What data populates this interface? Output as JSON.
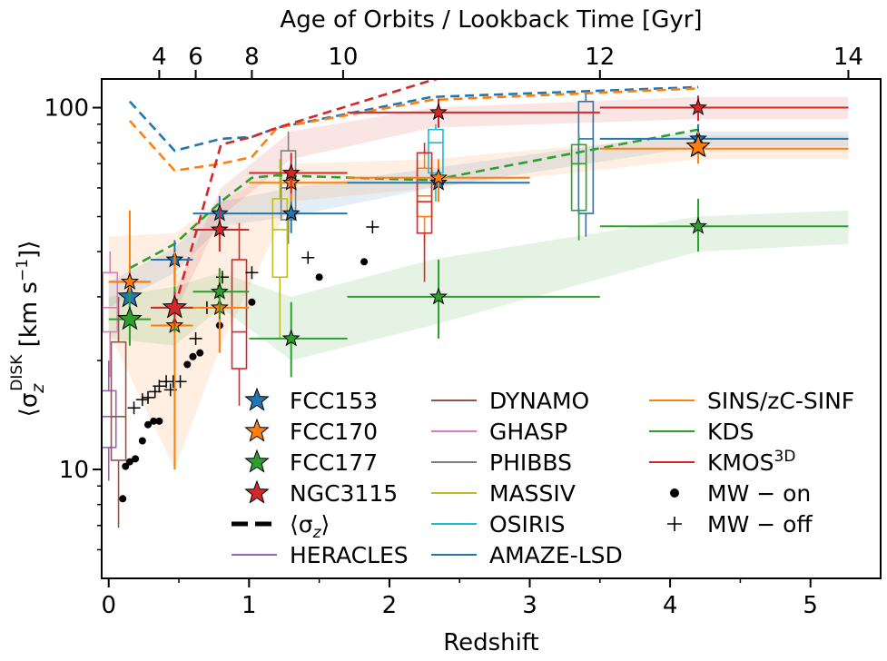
{
  "chart_data": {
    "type": "scatter",
    "xlabel": "Redshift",
    "ylabel": "⟨σ",
    "ylabel_sub": "z",
    "ylabel_sup": "DISK",
    "ylabel_units": " [km s",
    "ylabel_units_sup": "−1",
    "ylabel_close": "]⟩",
    "top_xlabel": "Age of Orbits / Lookback Time [Gyr]",
    "xlim": [
      -0.05,
      5.5
    ],
    "ylim": [
      5,
      120
    ],
    "y_scale": "log",
    "x_ticks": [
      0,
      1,
      2,
      3,
      4,
      5
    ],
    "x_tick_labels": [
      "0",
      "1",
      "2",
      "3",
      "4",
      "5"
    ],
    "y_ticks": [
      10,
      100
    ],
    "y_tick_labels": [
      "10",
      "100"
    ],
    "top_ticks": [
      {
        "label": "4",
        "z": 0.36
      },
      {
        "label": "6",
        "z": 0.62
      },
      {
        "label": "8",
        "z": 1.02
      },
      {
        "label": "10",
        "z": 1.67
      },
      {
        "label": "12",
        "z": 3.5
      },
      {
        "label": "14",
        "z": 5.27
      }
    ],
    "colors": {
      "FCC153": "#1f77b4",
      "FCC170": "#ff7f0e",
      "FCC177": "#2ca02c",
      "NGC3115": "#d62728",
      "HERACLES": "#9467bd",
      "DYNAMO": "#8c564b",
      "GHASP": "#e377c2",
      "PHIBBS": "#7f7f7f",
      "MASSIV": "#bcbd22",
      "OSIRIS": "#17becf",
      "AMAZE-LSD": "#1f77b4",
      "SINS/zC-SINF": "#ff7f0e",
      "KDS": "#2ca02c",
      "KMOS3D": "#d62728"
    },
    "galaxies": [
      {
        "name": "FCC153",
        "color": "#1f77b4",
        "sigma_z_mean": [
          [
            0.15,
            104
          ],
          [
            0.47,
            76
          ],
          [
            0.8,
            82
          ],
          [
            1.02,
            83
          ],
          [
            1.2,
            88
          ],
          [
            2.3,
            107
          ],
          [
            4.2,
            114
          ]
        ],
        "band": [
          [
            0.0,
            28,
            33
          ],
          [
            0.47,
            35,
            41
          ],
          [
            0.8,
            47,
            55
          ],
          [
            1.3,
            50,
            60
          ],
          [
            2.3,
            60,
            68
          ],
          [
            4.2,
            78,
            86
          ],
          [
            5.27,
            78,
            86
          ]
        ],
        "big_star": [
          0.15,
          30
        ],
        "points": [
          {
            "x": 0.15,
            "y": 33,
            "xerr": [
              0.0,
              0.3
            ],
            "yerr": [
              28,
              37
            ]
          },
          {
            "x": 0.47,
            "y": 38,
            "xerr": [
              0.3,
              0.6
            ],
            "yerr": [
              33,
              43
            ]
          },
          {
            "x": 0.79,
            "y": 51,
            "xerr": [
              0.6,
              1.0
            ],
            "yerr": [
              45,
              57
            ]
          },
          {
            "x": 1.3,
            "y": 51,
            "xerr": [
              1.0,
              1.7
            ],
            "yerr": [
              45,
              58
            ]
          },
          {
            "x": 2.35,
            "y": 62,
            "xerr": [
              1.7,
              3.0
            ],
            "yerr": [
              55,
              70
            ]
          },
          {
            "x": 4.2,
            "y": 82,
            "xerr": [
              3.5,
              5.27
            ],
            "yerr": [
              74,
              90
            ]
          }
        ]
      },
      {
        "name": "FCC170",
        "color": "#ff7f0e",
        "sigma_z_mean": [
          [
            0.15,
            92
          ],
          [
            0.47,
            67
          ],
          [
            0.8,
            70
          ],
          [
            1.02,
            73
          ],
          [
            1.2,
            88
          ],
          [
            2.3,
            105
          ],
          [
            4.2,
            113
          ]
        ],
        "band": [
          [
            0.0,
            24,
            44
          ],
          [
            0.47,
            10,
            45
          ],
          [
            0.8,
            22,
            55
          ],
          [
            1.3,
            55,
            70
          ],
          [
            2.3,
            60,
            72
          ],
          [
            4.2,
            72,
            84
          ],
          [
            5.27,
            72,
            84
          ]
        ],
        "big_star": [
          4.2,
          78
        ],
        "points": [
          {
            "x": 0.15,
            "y": 33,
            "xerr": [
              0.0,
              0.3
            ],
            "yerr": [
              22,
              52
            ]
          },
          {
            "x": 0.47,
            "y": 25,
            "xerr": [
              0.3,
              0.6
            ],
            "yerr": [
              10,
              40
            ]
          },
          {
            "x": 0.79,
            "y": 28,
            "xerr": [
              0.6,
              1.0
            ],
            "yerr": [
              21,
              36
            ]
          },
          {
            "x": 1.3,
            "y": 62,
            "xerr": [
              1.0,
              1.7
            ],
            "yerr": [
              55,
              70
            ]
          },
          {
            "x": 2.35,
            "y": 64,
            "xerr": [
              1.7,
              3.0
            ],
            "yerr": [
              55,
              72
            ]
          },
          {
            "x": 4.2,
            "y": 77,
            "xerr": [
              3.5,
              5.27
            ],
            "yerr": [
              70,
              86
            ]
          }
        ]
      },
      {
        "name": "FCC177",
        "color": "#2ca02c",
        "sigma_z_mean": [
          [
            0.15,
            36
          ],
          [
            0.47,
            42
          ],
          [
            0.8,
            55
          ],
          [
            1.02,
            64
          ],
          [
            1.2,
            65
          ],
          [
            2.3,
            63
          ],
          [
            4.2,
            87
          ]
        ],
        "band": [
          [
            0.0,
            23,
            30
          ],
          [
            0.47,
            22,
            32
          ],
          [
            0.8,
            28,
            35
          ],
          [
            1.3,
            20,
            30
          ],
          [
            2.3,
            25,
            38
          ],
          [
            4.2,
            40,
            50
          ],
          [
            5.27,
            42,
            52
          ]
        ],
        "big_star": [
          0.15,
          26
        ],
        "points": [
          {
            "x": 0.15,
            "y": 26,
            "xerr": [
              0.0,
              0.3
            ],
            "yerr": [
              22,
              31
            ]
          },
          {
            "x": 0.47,
            "y": 28,
            "xerr": [
              0.3,
              0.6
            ],
            "yerr": [
              24,
              32
            ]
          },
          {
            "x": 0.79,
            "y": 31,
            "xerr": [
              0.6,
              1.0
            ],
            "yerr": [
              26,
              36
            ]
          },
          {
            "x": 1.3,
            "y": 23,
            "xerr": [
              1.0,
              1.7
            ],
            "yerr": [
              18,
              29
            ]
          },
          {
            "x": 2.35,
            "y": 30,
            "xerr": [
              1.7,
              3.5
            ],
            "yerr": [
              23,
              38
            ]
          },
          {
            "x": 4.2,
            "y": 47,
            "xerr": [
              3.5,
              5.27
            ],
            "yerr": [
              40,
              56
            ]
          }
        ]
      },
      {
        "name": "NGC3115",
        "color": "#d62728",
        "sigma_z_mean": [
          [
            0.47,
            28
          ],
          [
            0.8,
            79
          ],
          [
            1.02,
            83
          ],
          [
            1.2,
            88
          ],
          [
            2.3,
            119
          ],
          [
            2.7,
            130
          ]
        ],
        "band": [
          [
            0.47,
            27,
            31
          ],
          [
            0.8,
            50,
            60
          ],
          [
            1.3,
            72,
            86
          ],
          [
            2.3,
            88,
            100
          ],
          [
            4.2,
            93,
            107
          ],
          [
            5.27,
            93,
            107
          ]
        ],
        "big_star": [
          0.47,
          28
        ],
        "points": [
          {
            "x": 0.47,
            "y": 28,
            "xerr": [
              0.3,
              0.6
            ],
            "yerr": [
              25,
              31
            ]
          },
          {
            "x": 0.79,
            "y": 46,
            "xerr": [
              0.6,
              1.0
            ],
            "yerr": [
              40,
              53
            ]
          },
          {
            "x": 1.3,
            "y": 66,
            "xerr": [
              1.0,
              1.7
            ],
            "yerr": [
              58,
              75
            ]
          },
          {
            "x": 2.35,
            "y": 97,
            "xerr": [
              1.7,
              3.5
            ],
            "yerr": [
              88,
              106
            ]
          },
          {
            "x": 4.2,
            "y": 100,
            "xerr": [
              3.5,
              5.27
            ],
            "yerr": [
              92,
              108
            ]
          }
        ]
      }
    ],
    "surveys": [
      {
        "name": "HERACLES",
        "color": "#9467bd",
        "x": 0.0,
        "q1": 11.5,
        "med": 14,
        "q3": 16.5,
        "lo": 9.3,
        "hi": 20
      },
      {
        "name": "DYNAMO",
        "color": "#8c564b",
        "x": 0.07,
        "q1": 10.6,
        "med": 14,
        "q3": 22.5,
        "lo": 6.9,
        "hi": 30
      },
      {
        "name": "GHASP",
        "color": "#e377c2",
        "x": 0.01,
        "q1": 24,
        "med": 28,
        "q3": 35,
        "lo": 18,
        "hi": 40
      },
      {
        "name": "PHIBBS",
        "color": "#7f7f7f",
        "x": 1.28,
        "q1": 49,
        "med": 60,
        "q3": 76,
        "lo": 42,
        "hi": 86
      },
      {
        "name": "MASSIV",
        "color": "#bcbd22",
        "x": 1.22,
        "q1": 34,
        "med": 46,
        "q3": 56,
        "lo": 23,
        "hi": 72
      },
      {
        "name": "OSIRIS",
        "color": "#17becf",
        "x": 2.33,
        "q1": 66,
        "med": 80,
        "q3": 87,
        "lo": 55,
        "hi": 90
      },
      {
        "name": "AMAZE-LSD",
        "color": "#1f77b4",
        "x": 3.4,
        "q1": 51,
        "med": 82,
        "q3": 104,
        "lo": 44,
        "hi": 110
      },
      {
        "name": "SINS/zC-SINF",
        "color": "#ff7f0e",
        "x": 2.25,
        "q1": 50,
        "med": 57,
        "q3": 68,
        "lo": 42,
        "hi": 76
      },
      {
        "name": "KDS",
        "color": "#2ca02c",
        "x": 3.35,
        "q1": 52,
        "med": 70,
        "q3": 79,
        "lo": 43,
        "hi": 84
      },
      {
        "name": "KMOS3D",
        "color": "#d62728",
        "x": 0.93,
        "q1": 19,
        "med": 24,
        "q3": 38,
        "lo": 15,
        "hi": 48
      },
      {
        "name": "KMOS3D-2",
        "color": "#d62728",
        "x": 2.25,
        "q1": 45,
        "med": 55,
        "q3": 75,
        "lo": 33,
        "hi": 80
      }
    ],
    "mw_on": [
      [
        0.1,
        8.3
      ],
      [
        0.12,
        10.2
      ],
      [
        0.15,
        10.5
      ],
      [
        0.19,
        10.7
      ],
      [
        0.24,
        12
      ],
      [
        0.28,
        13.3
      ],
      [
        0.32,
        13.6
      ],
      [
        0.36,
        13.6
      ],
      [
        0.56,
        19.5
      ],
      [
        0.6,
        20.5
      ],
      [
        0.65,
        21
      ],
      [
        0.79,
        25
      ],
      [
        1.02,
        29
      ],
      [
        1.5,
        34
      ],
      [
        1.82,
        37.5
      ]
    ],
    "mw_off": [
      [
        0.18,
        14.8
      ],
      [
        0.24,
        15.6
      ],
      [
        0.28,
        15.8
      ],
      [
        0.33,
        16.4
      ],
      [
        0.36,
        17
      ],
      [
        0.41,
        17.5
      ],
      [
        0.44,
        16.6
      ],
      [
        0.46,
        17.5
      ],
      [
        0.51,
        17.5
      ],
      [
        0.62,
        23
      ],
      [
        0.7,
        28
      ],
      [
        0.78,
        31
      ],
      [
        0.81,
        34
      ],
      [
        1.02,
        35
      ],
      [
        1.42,
        38.5
      ],
      [
        1.88,
        46.8
      ]
    ],
    "legend": {
      "col1": [
        {
          "label": "FCC153",
          "kind": "star",
          "color": "#1f77b4"
        },
        {
          "label": "FCC170",
          "kind": "star",
          "color": "#ff7f0e"
        },
        {
          "label": "FCC177",
          "kind": "star",
          "color": "#2ca02c"
        },
        {
          "label": "NGC3115",
          "kind": "star",
          "color": "#d62728"
        },
        {
          "label": "⟨σ",
          "sub": "z",
          "label_end": "⟩",
          "kind": "dash",
          "color": "#000000"
        },
        {
          "label": "HERACLES",
          "kind": "line",
          "color": "#9467bd"
        }
      ],
      "col2": [
        {
          "label": "DYNAMO",
          "kind": "line",
          "color": "#8c564b"
        },
        {
          "label": "GHASP",
          "kind": "line",
          "color": "#e377c2"
        },
        {
          "label": "PHIBBS",
          "kind": "line",
          "color": "#7f7f7f"
        },
        {
          "label": "MASSIV",
          "kind": "line",
          "color": "#bcbd22"
        },
        {
          "label": "OSIRIS",
          "kind": "line",
          "color": "#17becf"
        },
        {
          "label": "AMAZE-LSD",
          "kind": "line",
          "color": "#1f77b4"
        }
      ],
      "col3": [
        {
          "label": "SINS/zC-SINF",
          "kind": "line",
          "color": "#ff7f0e"
        },
        {
          "label": "KDS",
          "kind": "line",
          "color": "#2ca02c"
        },
        {
          "label": "KMOS",
          "sup": "3D",
          "kind": "line",
          "color": "#d62728"
        },
        {
          "label": "MW − on",
          "kind": "dot",
          "color": "#000000"
        },
        {
          "label": "MW − off",
          "kind": "plus",
          "color": "#000000"
        }
      ]
    }
  }
}
